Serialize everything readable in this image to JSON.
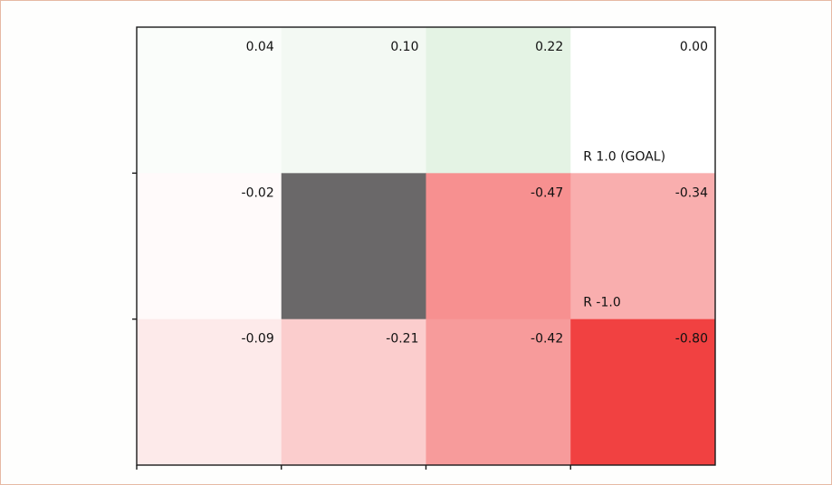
{
  "chart_data": {
    "type": "heatmap",
    "rows": 3,
    "cols": 4,
    "values": [
      [
        0.04,
        0.1,
        0.22,
        0.0
      ],
      [
        -0.02,
        null,
        -0.47,
        -0.34
      ],
      [
        -0.09,
        -0.21,
        -0.42,
        -0.8
      ]
    ],
    "value_labels": [
      [
        "0.04",
        "0.10",
        "0.22",
        "0.00"
      ],
      [
        "-0.02",
        "",
        "-0.47",
        "-0.34"
      ],
      [
        "-0.09",
        "-0.21",
        "-0.42",
        "-0.80"
      ]
    ],
    "wall_cells": [
      {
        "row": 1,
        "col": 1,
        "color": "#6a6869"
      }
    ],
    "annotations": [
      {
        "row": 0,
        "col": 3,
        "text": "R 1.0 (GOAL)"
      },
      {
        "row": 1,
        "col": 3,
        "text": "R -1.0"
      }
    ],
    "colors": {
      "positive": "#2ea02e",
      "negative": "#ee2020",
      "zero": "#ffffff"
    },
    "grid": false,
    "title": "",
    "xlabel": "",
    "ylabel": ""
  }
}
